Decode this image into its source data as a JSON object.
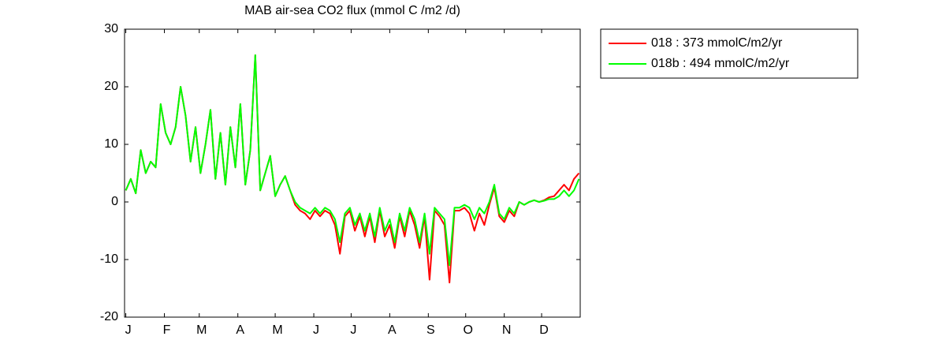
{
  "chart_data": {
    "type": "line",
    "title": "MAB  air-sea CO2 flux (mmol C /m2 /d)",
    "x": [
      1,
      5,
      9,
      13,
      17,
      21,
      25,
      29,
      33,
      37,
      41,
      45,
      49,
      53,
      57,
      61,
      65,
      69,
      73,
      77,
      81,
      85,
      89,
      93,
      97,
      101,
      105,
      109,
      113,
      117,
      121,
      125,
      129,
      133,
      137,
      141,
      145,
      149,
      153,
      157,
      161,
      165,
      169,
      173,
      177,
      181,
      185,
      189,
      193,
      197,
      201,
      205,
      209,
      213,
      217,
      221,
      225,
      229,
      233,
      237,
      241,
      245,
      249,
      253,
      257,
      261,
      265,
      269,
      273,
      277,
      281,
      285,
      289,
      293,
      297,
      301,
      305,
      309,
      313,
      317,
      321,
      325,
      329,
      333,
      337,
      341,
      345,
      349,
      353,
      357,
      361,
      365
    ],
    "series": [
      {
        "name": "018 : 373 mmolC/m2/yr",
        "color": "#ff0000",
        "values": [
          2,
          4,
          1.5,
          9,
          5,
          7,
          6,
          17,
          12,
          10,
          13,
          20,
          15,
          7,
          13,
          5,
          10,
          16,
          4,
          12,
          3,
          13,
          6,
          17,
          3,
          9,
          25.5,
          2,
          5,
          8,
          1,
          3,
          4.5,
          2,
          -0.5,
          -1.5,
          -2,
          -3,
          -1.5,
          -2.5,
          -1.5,
          -2,
          -4,
          -9,
          -2.5,
          -1.5,
          -5,
          -2.5,
          -6,
          -2.5,
          -7,
          -1.5,
          -6,
          -4,
          -8,
          -2.5,
          -6,
          -1.5,
          -4,
          -8,
          -2.5,
          -13.5,
          -1.5,
          -2.5,
          -4,
          -14,
          -1.5,
          -1.5,
          -1,
          -2,
          -5,
          -2,
          -4,
          -0.5,
          2.5,
          -2.5,
          -3.5,
          -1.5,
          -2.5,
          0,
          -0.5,
          0,
          0.3,
          0,
          0.3,
          0.8,
          1,
          2,
          3,
          2,
          4,
          5
        ]
      },
      {
        "name": "018b : 494 mmolC/m2/yr",
        "color": "#00ff00",
        "values": [
          2,
          4,
          1.5,
          9,
          5,
          7,
          6,
          17,
          12,
          10,
          13,
          20,
          15,
          7,
          13,
          5,
          10,
          16,
          4,
          12,
          3,
          13,
          6,
          17,
          3,
          9,
          25.5,
          2,
          5,
          8,
          1,
          3,
          4.5,
          2,
          0,
          -1,
          -1.5,
          -2,
          -1,
          -2,
          -1,
          -1.5,
          -3,
          -7,
          -2,
          -1,
          -4,
          -2,
          -5,
          -2,
          -6,
          -1,
          -5,
          -3,
          -7,
          -2,
          -5,
          -1,
          -3,
          -7,
          -2,
          -9,
          -1,
          -2,
          -3,
          -11,
          -1,
          -1,
          -0.5,
          -1,
          -3,
          -1,
          -2,
          0,
          3,
          -2,
          -3,
          -1,
          -2,
          0,
          -0.5,
          0,
          0.3,
          0,
          0.2,
          0.5,
          0.5,
          1,
          2,
          1,
          2,
          4
        ]
      }
    ],
    "xlim": [
      0,
      366
    ],
    "xticks": [
      {
        "value": 1,
        "label": "J"
      },
      {
        "value": 32,
        "label": "F"
      },
      {
        "value": 60,
        "label": "M"
      },
      {
        "value": 91,
        "label": "A"
      },
      {
        "value": 121,
        "label": "M"
      },
      {
        "value": 152,
        "label": "J"
      },
      {
        "value": 182,
        "label": "J"
      },
      {
        "value": 213,
        "label": "A"
      },
      {
        "value": 244,
        "label": "S"
      },
      {
        "value": 274,
        "label": "O"
      },
      {
        "value": 305,
        "label": "N"
      },
      {
        "value": 335,
        "label": "D"
      }
    ],
    "ylim": [
      -20,
      30
    ],
    "yticks": [
      -20,
      -10,
      0,
      10,
      20,
      30
    ],
    "grid": false,
    "legend": "outside-right"
  }
}
